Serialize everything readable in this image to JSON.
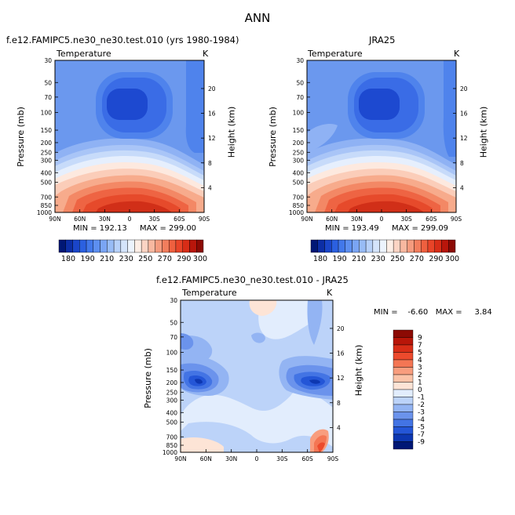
{
  "title": "ANN",
  "panels": [
    {
      "title": "f.e12.FAMIPC5.ne30_ne30.test.010 (yrs 1980-1984)",
      "variable": "Temperature",
      "unit": "K",
      "min_label": "MIN = 192.13",
      "max_label": "MAX = 299.00"
    },
    {
      "title": "JRA25",
      "variable": "Temperature",
      "unit": "K",
      "min_label": "MIN = 193.49",
      "max_label": "MAX = 299.09"
    },
    {
      "title": "f.e12.FAMIPC5.ne30_ne30.test.010 - JRA25",
      "variable": "Temperature",
      "unit": "K",
      "minmax_label": "MIN =    -6.60   MAX =     3.84"
    }
  ],
  "chart_data": [
    {
      "type": "contour",
      "title": "f.e12.FAMIPC5.ne30_ne30.test.010 (yrs 1980-1984)",
      "xlabel": "",
      "ylabel": "Pressure (mb)",
      "y2label": "Height (km)",
      "x_ticks": [
        "90N",
        "60N",
        "30N",
        "0",
        "30S",
        "60S",
        "90S"
      ],
      "y_ticks": [
        "30",
        "50",
        "70",
        "100",
        "150",
        "200",
        "250",
        "300",
        "400",
        "500",
        "700",
        "850",
        "1000"
      ],
      "y2_ticks": [
        "20",
        "16",
        "12",
        "8",
        "4"
      ],
      "min": 192.13,
      "max": 299.0,
      "contour_levels": [
        180,
        185,
        190,
        195,
        200,
        205,
        210,
        215,
        220,
        225,
        230,
        235,
        240,
        245,
        250,
        255,
        260,
        265,
        270,
        275,
        280,
        285,
        290,
        295,
        300
      ]
    },
    {
      "type": "contour",
      "title": "JRA25",
      "xlabel": "",
      "ylabel": "Pressure (mb)",
      "y2label": "Height (km)",
      "x_ticks": [
        "90N",
        "60N",
        "30N",
        "0",
        "30S",
        "60S",
        "90S"
      ],
      "y_ticks": [
        "30",
        "50",
        "70",
        "100",
        "150",
        "200",
        "250",
        "300",
        "400",
        "500",
        "700",
        "850",
        "1000"
      ],
      "y2_ticks": [
        "20",
        "16",
        "12",
        "8",
        "4"
      ],
      "min": 193.49,
      "max": 299.09,
      "contour_levels": [
        180,
        185,
        190,
        195,
        200,
        205,
        210,
        215,
        220,
        225,
        230,
        235,
        240,
        245,
        250,
        255,
        260,
        265,
        270,
        275,
        280,
        285,
        290,
        295,
        300
      ]
    },
    {
      "type": "contour",
      "title": "f.e12.FAMIPC5.ne30_ne30.test.010 - JRA25",
      "xlabel": "",
      "ylabel": "Pressure (mb)",
      "y2label": "Height (km)",
      "x_ticks": [
        "90N",
        "60N",
        "30N",
        "0",
        "30S",
        "60S",
        "90S"
      ],
      "y_ticks": [
        "30",
        "50",
        "70",
        "100",
        "150",
        "200",
        "250",
        "300",
        "400",
        "500",
        "700",
        "850",
        "1000"
      ],
      "y2_ticks": [
        "20",
        "16",
        "12",
        "8",
        "4"
      ],
      "min": -6.6,
      "max": 3.84,
      "contour_levels": [
        -9,
        -7,
        -5,
        -4,
        -3,
        -2,
        -1,
        0,
        1,
        2,
        3,
        4,
        5,
        7,
        9
      ]
    }
  ],
  "colorbars": {
    "absolute": {
      "labels": [
        "180",
        "190",
        "210",
        "230",
        "250",
        "270",
        "290",
        "300"
      ],
      "colors": [
        "#001775",
        "#0c2ea6",
        "#1a45c9",
        "#2b60e0",
        "#4278ea",
        "#5d8ff0",
        "#7aa5f4",
        "#98bcf6",
        "#b7d1f9",
        "#d4e4fb",
        "#ecf3fd",
        "#fdeee6",
        "#fbd4c4",
        "#f8b8a0",
        "#f59b7e",
        "#f27e5d",
        "#ef603f",
        "#e94428",
        "#d82d17",
        "#b8160b",
        "#8c0a04"
      ]
    },
    "difference": {
      "labels": [
        "9",
        "7",
        "5",
        "4",
        "3",
        "2",
        "1",
        "0",
        "-1",
        "-2",
        "-3",
        "-4",
        "-5",
        "-7",
        "-9"
      ],
      "colors": [
        "#8c0a04",
        "#b81609",
        "#d82d17",
        "#ec4a2d",
        "#f47654",
        "#f89d7e",
        "#fbc3a8",
        "#fde4d6",
        "#e2edfd",
        "#bcd3f9",
        "#93b4f3",
        "#6b93ec",
        "#4374e4",
        "#2456d7",
        "#0d37b1",
        "#001775"
      ]
    }
  }
}
